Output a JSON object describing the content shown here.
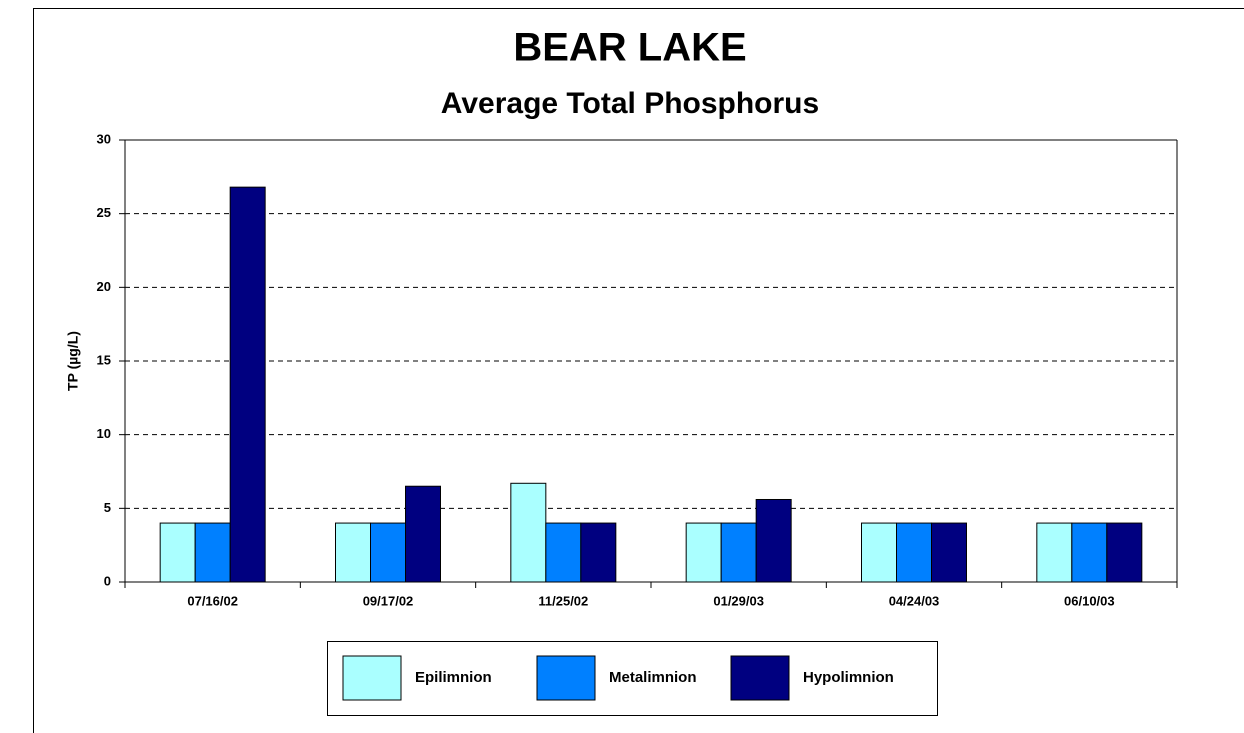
{
  "chart_data": {
    "type": "bar",
    "title": "BEAR LAKE",
    "subtitle": "Average Total Phosphorus",
    "y_label": "TP (µg/L)",
    "categories": [
      "07/16/02",
      "09/17/02",
      "11/25/02",
      "01/29/03",
      "04/24/03",
      "06/10/03"
    ],
    "series": [
      {
        "name": "Epilimnion",
        "color": "#aaffff",
        "values": [
          4,
          4,
          6.7,
          4,
          4,
          4
        ]
      },
      {
        "name": "Metalimnion",
        "color": "#0080ff",
        "values": [
          4,
          4,
          4,
          4,
          4,
          4
        ]
      },
      {
        "name": "Hypolimnion",
        "color": "#000080",
        "values": [
          26.8,
          6.5,
          4,
          5.6,
          4,
          4
        ]
      }
    ],
    "ylim": [
      0,
      30
    ],
    "yticks": [
      0,
      5,
      10,
      15,
      20,
      25,
      30
    ],
    "grid": true,
    "legend": "bottom"
  }
}
